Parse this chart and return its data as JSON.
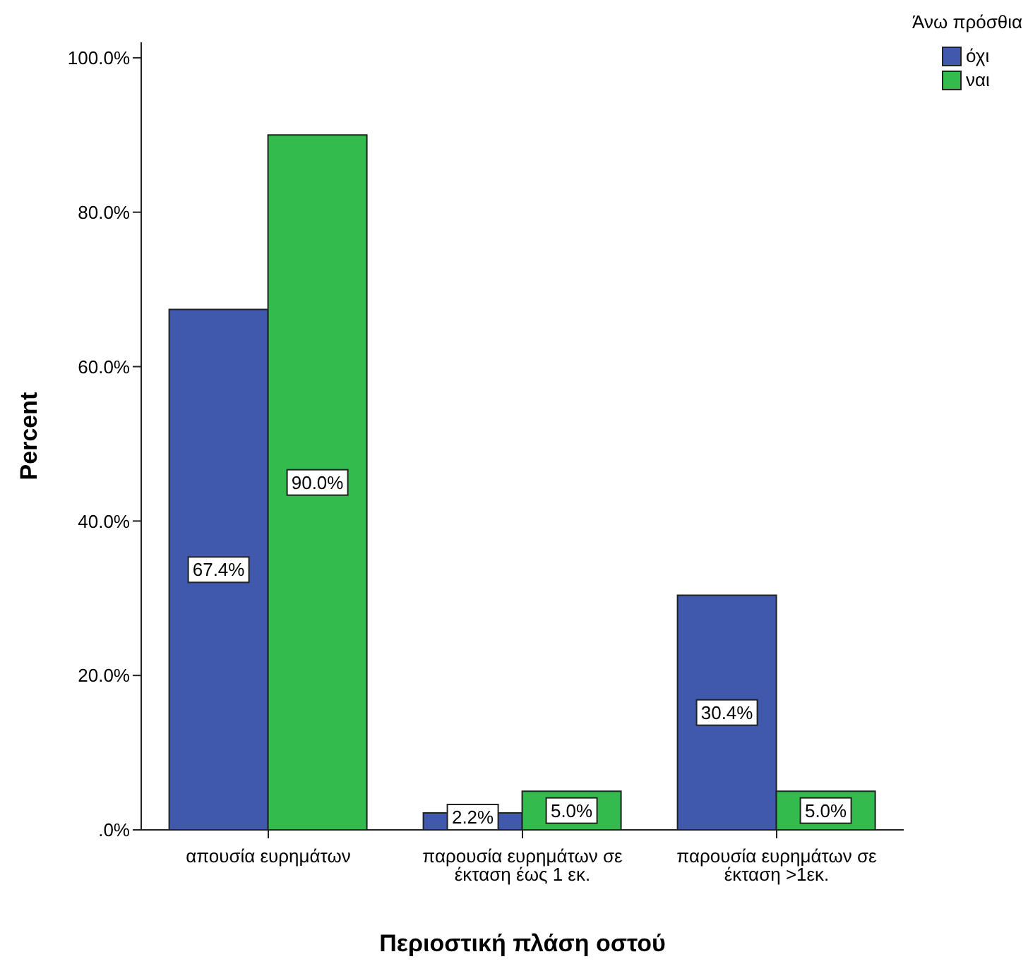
{
  "chart_data": {
    "type": "bar",
    "xlabel": "Περιοστική πλάση οστού",
    "ylabel": "Percent",
    "legend_title": "Άνω πρόσθια",
    "categories": [
      "απουσία ευρημάτων",
      "παρουσία ευρημάτων σε έκταση έως 1 εκ.",
      "παρουσία ευρημάτων σε έκταση >1εκ."
    ],
    "series": [
      {
        "name": "όχι",
        "color": "#4059ad",
        "values": [
          67.4,
          2.2,
          30.4
        ],
        "value_labels": [
          "67.4%",
          "2.2%",
          "30.4%"
        ]
      },
      {
        "name": "ναι",
        "color": "#33bb4e",
        "values": [
          90.0,
          5.0,
          5.0
        ],
        "value_labels": [
          "90.0%",
          "5.0%",
          "5.0%"
        ]
      }
    ],
    "ylim": [
      0,
      102
    ],
    "yticks": [
      {
        "value": 0,
        "label": ".0%"
      },
      {
        "value": 20,
        "label": "20.0%"
      },
      {
        "value": 40,
        "label": "40.0%"
      },
      {
        "value": 60,
        "label": "60.0%"
      },
      {
        "value": 80,
        "label": "80.0%"
      },
      {
        "value": 100,
        "label": "100.0%"
      }
    ],
    "legend": "right"
  }
}
